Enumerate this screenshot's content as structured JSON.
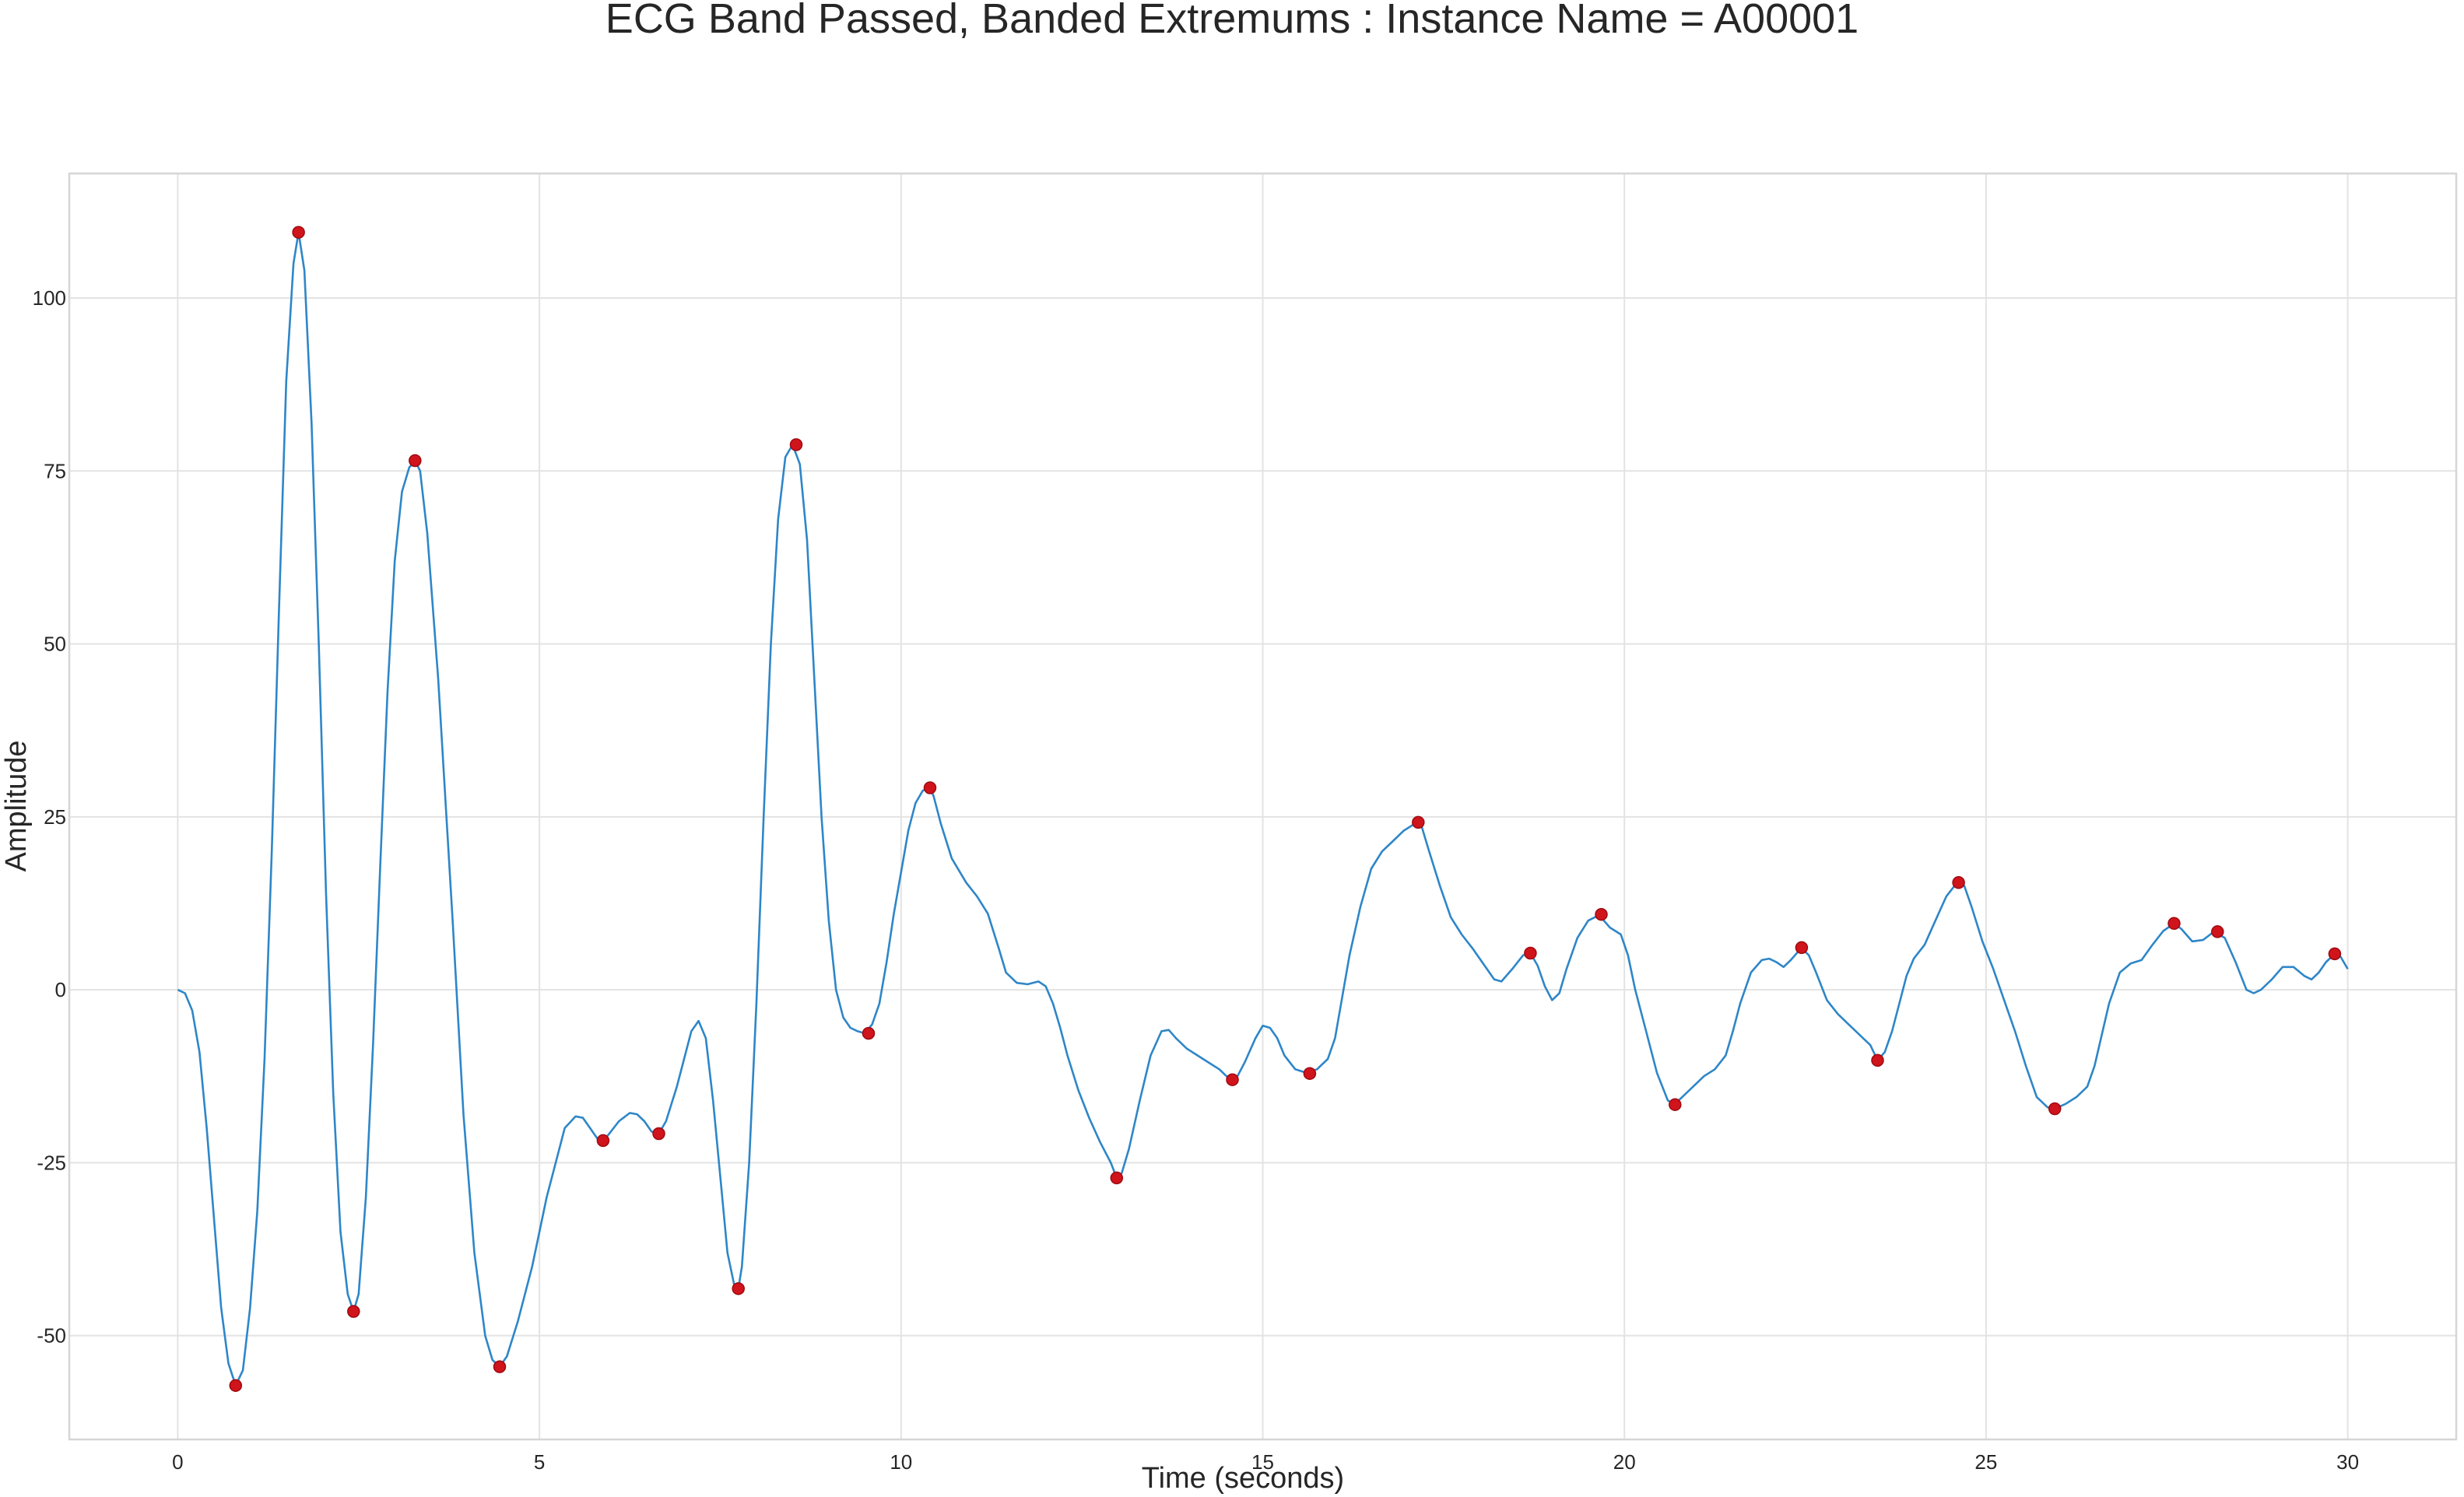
{
  "chart_data": {
    "type": "line",
    "title": "ECG Band Passed, Banded Extremums : Instance Name = A00001",
    "xlabel": "Time (seconds)",
    "ylabel": "Amplitude",
    "xlim": [
      -1.5,
      31.5
    ],
    "ylim": [
      -65,
      118
    ],
    "x_ticks": [
      0,
      5,
      10,
      15,
      20,
      25,
      30
    ],
    "y_ticks": [
      -50,
      -25,
      0,
      25,
      50,
      75,
      100
    ],
    "grid": true,
    "series": [
      {
        "color": "#2e86c8",
        "points": [
          [
            0.0,
            0
          ],
          [
            0.1,
            -0.5
          ],
          [
            0.2,
            -3
          ],
          [
            0.3,
            -9
          ],
          [
            0.4,
            -20
          ],
          [
            0.5,
            -33
          ],
          [
            0.6,
            -46
          ],
          [
            0.7,
            -54
          ],
          [
            0.8,
            -57.2
          ],
          [
            0.9,
            -55
          ],
          [
            1.0,
            -46
          ],
          [
            1.1,
            -32
          ],
          [
            1.2,
            -10
          ],
          [
            1.3,
            20
          ],
          [
            1.4,
            55
          ],
          [
            1.5,
            88
          ],
          [
            1.6,
            105
          ],
          [
            1.67,
            109.5
          ],
          [
            1.75,
            104
          ],
          [
            1.85,
            82
          ],
          [
            1.95,
            50
          ],
          [
            2.05,
            14
          ],
          [
            2.15,
            -15
          ],
          [
            2.25,
            -35
          ],
          [
            2.35,
            -44
          ],
          [
            2.43,
            -46.5
          ],
          [
            2.5,
            -44
          ],
          [
            2.6,
            -30
          ],
          [
            2.7,
            -8
          ],
          [
            2.8,
            18
          ],
          [
            2.9,
            43
          ],
          [
            3.0,
            62
          ],
          [
            3.1,
            72
          ],
          [
            3.2,
            75.5
          ],
          [
            3.28,
            76.5
          ],
          [
            3.35,
            75
          ],
          [
            3.45,
            66
          ],
          [
            3.6,
            45
          ],
          [
            3.8,
            10
          ],
          [
            3.95,
            -18
          ],
          [
            4.1,
            -38
          ],
          [
            4.25,
            -50
          ],
          [
            4.35,
            -53.5
          ],
          [
            4.45,
            -54.5
          ],
          [
            4.55,
            -53
          ],
          [
            4.7,
            -48
          ],
          [
            4.9,
            -40
          ],
          [
            5.0,
            -35
          ],
          [
            5.1,
            -30
          ],
          [
            5.2,
            -26
          ],
          [
            5.35,
            -20
          ],
          [
            5.5,
            -18.3
          ],
          [
            5.6,
            -18.5
          ],
          [
            5.7,
            -20
          ],
          [
            5.8,
            -21.5
          ],
          [
            5.88,
            -21.8
          ],
          [
            5.95,
            -21
          ],
          [
            6.1,
            -19
          ],
          [
            6.25,
            -17.8
          ],
          [
            6.35,
            -18
          ],
          [
            6.45,
            -19
          ],
          [
            6.55,
            -20.5
          ],
          [
            6.65,
            -20.8
          ],
          [
            6.75,
            -19
          ],
          [
            6.9,
            -14
          ],
          [
            7.0,
            -10
          ],
          [
            7.1,
            -6
          ],
          [
            7.2,
            -4.5
          ],
          [
            7.3,
            -7
          ],
          [
            7.4,
            -16
          ],
          [
            7.5,
            -27
          ],
          [
            7.6,
            -38
          ],
          [
            7.7,
            -43
          ],
          [
            7.75,
            -43.2
          ],
          [
            7.8,
            -40
          ],
          [
            7.9,
            -25
          ],
          [
            8.0,
            -2
          ],
          [
            8.1,
            25
          ],
          [
            8.2,
            50
          ],
          [
            8.3,
            68
          ],
          [
            8.4,
            77
          ],
          [
            8.5,
            78.8
          ],
          [
            8.6,
            76
          ],
          [
            8.7,
            65
          ],
          [
            8.8,
            45
          ],
          [
            8.9,
            25
          ],
          [
            9.0,
            10
          ],
          [
            9.1,
            0
          ],
          [
            9.2,
            -4
          ],
          [
            9.3,
            -5.5
          ],
          [
            9.4,
            -6
          ],
          [
            9.5,
            -6.3
          ],
          [
            9.6,
            -5
          ],
          [
            9.7,
            -2
          ],
          [
            9.8,
            4
          ],
          [
            9.9,
            11
          ],
          [
            10.0,
            17
          ],
          [
            10.1,
            23
          ],
          [
            10.2,
            27
          ],
          [
            10.3,
            28.8
          ],
          [
            10.4,
            29.2
          ],
          [
            10.45,
            28
          ],
          [
            10.55,
            24
          ],
          [
            10.7,
            19
          ],
          [
            10.9,
            15.5
          ],
          [
            11.05,
            13.5
          ],
          [
            11.2,
            11
          ],
          [
            11.35,
            6
          ],
          [
            11.45,
            2.5
          ],
          [
            11.6,
            1
          ],
          [
            11.75,
            0.8
          ],
          [
            11.9,
            1.2
          ],
          [
            12.0,
            0.5
          ],
          [
            12.1,
            -2
          ],
          [
            12.2,
            -5.5
          ],
          [
            12.3,
            -9.5
          ],
          [
            12.45,
            -14.5
          ],
          [
            12.6,
            -18.5
          ],
          [
            12.75,
            -22
          ],
          [
            12.9,
            -25
          ],
          [
            12.98,
            -27.2
          ],
          [
            13.05,
            -26.5
          ],
          [
            13.15,
            -23
          ],
          [
            13.3,
            -16
          ],
          [
            13.45,
            -9.5
          ],
          [
            13.6,
            -6
          ],
          [
            13.7,
            -5.8
          ],
          [
            13.8,
            -7
          ],
          [
            13.95,
            -8.5
          ],
          [
            14.1,
            -9.5
          ],
          [
            14.25,
            -10.5
          ],
          [
            14.4,
            -11.5
          ],
          [
            14.5,
            -12.5
          ],
          [
            14.58,
            -13
          ],
          [
            14.65,
            -12.5
          ],
          [
            14.75,
            -10.5
          ],
          [
            14.9,
            -7
          ],
          [
            15.0,
            -5.2
          ],
          [
            15.1,
            -5.5
          ],
          [
            15.2,
            -7
          ],
          [
            15.3,
            -9.5
          ],
          [
            15.45,
            -11.5
          ],
          [
            15.6,
            -12
          ],
          [
            15.75,
            -11.5
          ],
          [
            15.9,
            -10
          ],
          [
            16.0,
            -7
          ],
          [
            16.1,
            -1
          ],
          [
            16.2,
            5
          ],
          [
            16.35,
            12
          ],
          [
            16.5,
            17.5
          ],
          [
            16.65,
            20
          ],
          [
            16.8,
            21.5
          ],
          [
            16.95,
            23
          ],
          [
            17.1,
            24
          ],
          [
            17.2,
            23.5
          ],
          [
            17.3,
            20
          ],
          [
            17.45,
            15
          ],
          [
            17.6,
            10.5
          ],
          [
            17.75,
            8
          ],
          [
            17.9,
            6
          ],
          [
            18.0,
            4.5
          ],
          [
            18.1,
            3
          ],
          [
            18.2,
            1.5
          ],
          [
            18.3,
            1.2
          ],
          [
            18.45,
            3
          ],
          [
            18.6,
            5
          ],
          [
            18.7,
            5.3
          ],
          [
            18.8,
            3.5
          ],
          [
            18.9,
            0.5
          ],
          [
            19.0,
            -1.5
          ],
          [
            19.1,
            -0.5
          ],
          [
            19.2,
            3
          ],
          [
            19.35,
            7.5
          ],
          [
            19.5,
            10
          ],
          [
            19.65,
            10.8
          ],
          [
            19.8,
            9
          ],
          [
            19.95,
            8
          ],
          [
            20.05,
            5
          ],
          [
            20.15,
            0
          ],
          [
            20.3,
            -6
          ],
          [
            20.45,
            -12
          ],
          [
            20.6,
            -16
          ],
          [
            20.7,
            -16.5
          ],
          [
            20.8,
            -15.5
          ],
          [
            20.95,
            -14
          ],
          [
            21.1,
            -12.5
          ],
          [
            21.25,
            -11.5
          ],
          [
            21.4,
            -9.5
          ],
          [
            21.5,
            -6
          ],
          [
            21.6,
            -2
          ],
          [
            21.75,
            2.5
          ],
          [
            21.9,
            4.3
          ],
          [
            22.0,
            4.5
          ],
          [
            22.1,
            4
          ],
          [
            22.2,
            3.3
          ],
          [
            22.3,
            4.3
          ],
          [
            22.4,
            5.5
          ],
          [
            22.45,
            6
          ],
          [
            22.55,
            5
          ],
          [
            22.65,
            2.5
          ],
          [
            22.8,
            -1.5
          ],
          [
            22.95,
            -3.5
          ],
          [
            23.1,
            -5
          ],
          [
            23.25,
            -6.5
          ],
          [
            23.4,
            -8
          ],
          [
            23.5,
            -10.2
          ],
          [
            23.6,
            -9
          ],
          [
            23.7,
            -6
          ],
          [
            23.8,
            -2
          ],
          [
            23.9,
            2
          ],
          [
            24.0,
            4.5
          ],
          [
            24.15,
            6.5
          ],
          [
            24.3,
            10
          ],
          [
            24.45,
            13.5
          ],
          [
            24.6,
            15.5
          ],
          [
            24.7,
            15
          ],
          [
            24.8,
            12
          ],
          [
            24.95,
            7
          ],
          [
            25.1,
            3
          ],
          [
            25.25,
            -1.5
          ],
          [
            25.4,
            -6
          ],
          [
            25.55,
            -11
          ],
          [
            25.7,
            -15.5
          ],
          [
            25.85,
            -17
          ],
          [
            25.95,
            -17.2
          ],
          [
            26.1,
            -16.5
          ],
          [
            26.25,
            -15.5
          ],
          [
            26.4,
            -14
          ],
          [
            26.5,
            -11
          ],
          [
            26.6,
            -6.5
          ],
          [
            26.7,
            -2
          ],
          [
            26.85,
            2.5
          ],
          [
            27.0,
            3.8
          ],
          [
            27.15,
            4.3
          ],
          [
            27.3,
            6.5
          ],
          [
            27.45,
            8.5
          ],
          [
            27.6,
            9.6
          ],
          [
            27.7,
            8.8
          ],
          [
            27.85,
            7
          ],
          [
            28.0,
            7.2
          ],
          [
            28.15,
            8.4
          ],
          [
            28.3,
            7.5
          ],
          [
            28.45,
            4
          ],
          [
            28.6,
            0
          ],
          [
            28.7,
            -0.5
          ],
          [
            28.8,
            0
          ],
          [
            28.95,
            1.5
          ],
          [
            29.1,
            3.3
          ],
          [
            29.25,
            3.3
          ],
          [
            29.4,
            2
          ],
          [
            29.5,
            1.5
          ],
          [
            29.6,
            2.5
          ],
          [
            29.7,
            4
          ],
          [
            29.82,
            5.2
          ],
          [
            29.9,
            4.8
          ],
          [
            30.0,
            3
          ]
        ]
      },
      {
        "color": "#d0141c",
        "points": [
          [
            0.8,
            -57.2
          ],
          [
            1.67,
            109.5
          ],
          [
            2.43,
            -46.5
          ],
          [
            3.28,
            76.5
          ],
          [
            4.45,
            -54.5
          ],
          [
            5.88,
            -21.8
          ],
          [
            6.65,
            -20.8
          ],
          [
            7.75,
            -43.2
          ],
          [
            8.55,
            78.8
          ],
          [
            9.55,
            -6.3
          ],
          [
            10.4,
            29.2
          ],
          [
            12.98,
            -27.2
          ],
          [
            14.58,
            -13
          ],
          [
            15.65,
            -12.1
          ],
          [
            17.15,
            24.2
          ],
          [
            18.7,
            5.3
          ],
          [
            19.68,
            10.9
          ],
          [
            20.7,
            -16.6
          ],
          [
            22.45,
            6.1
          ],
          [
            23.5,
            -10.2
          ],
          [
            24.62,
            15.5
          ],
          [
            25.95,
            -17.2
          ],
          [
            27.6,
            9.6
          ],
          [
            28.2,
            8.4
          ],
          [
            29.82,
            5.2
          ]
        ]
      }
    ]
  }
}
